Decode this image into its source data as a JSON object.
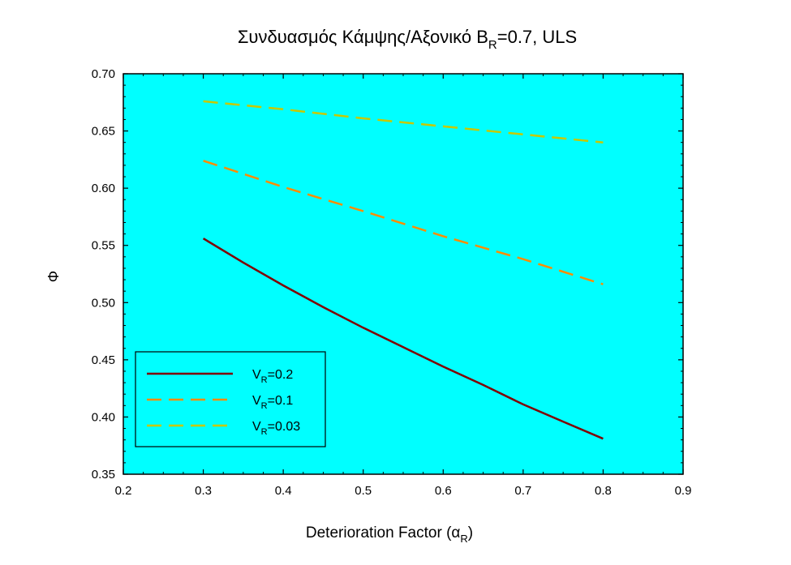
{
  "chart_data": {
    "type": "line",
    "title": {
      "main": "Συνδυασμός Κάμψης/Αξονικό  B",
      "sub": "R",
      "rest": "=0.7, ULS"
    },
    "xlabel": {
      "main": "Deterioration Factor (α",
      "sub": "R",
      "rest": ")"
    },
    "ylabel": "Φ",
    "xlim": [
      0.2,
      0.9
    ],
    "ylim": [
      0.35,
      0.7
    ],
    "xticks": [
      "0.2",
      "0.3",
      "0.4",
      "0.5",
      "0.6",
      "0.7",
      "0.8",
      "0.9"
    ],
    "yticks": [
      "0.35",
      "0.40",
      "0.45",
      "0.50",
      "0.55",
      "0.60",
      "0.65",
      "0.70"
    ],
    "background": "#00ffff",
    "grid": false,
    "legend_position": "bottom-left",
    "series": [
      {
        "name_main": "V",
        "name_sub": "R",
        "name_rest": "=0.2",
        "color": "#800000",
        "style": "solid",
        "x": [
          0.3,
          0.35,
          0.4,
          0.45,
          0.5,
          0.55,
          0.6,
          0.65,
          0.7,
          0.75,
          0.8
        ],
        "y": [
          0.556,
          0.535,
          0.515,
          0.496,
          0.478,
          0.461,
          0.444,
          0.428,
          0.411,
          0.396,
          0.381
        ]
      },
      {
        "name_main": "V",
        "name_sub": "R",
        "name_rest": "=0.1",
        "color": "#ff8c00",
        "style": "dashed",
        "x": [
          0.3,
          0.4,
          0.5,
          0.6,
          0.7,
          0.8
        ],
        "y": [
          0.624,
          0.601,
          0.58,
          0.558,
          0.538,
          0.516
        ]
      },
      {
        "name_main": "V",
        "name_sub": "R",
        "name_rest": "=0.03",
        "color": "#c8c800",
        "style": "dashed",
        "x": [
          0.3,
          0.4,
          0.5,
          0.6,
          0.7,
          0.8
        ],
        "y": [
          0.676,
          0.669,
          0.661,
          0.654,
          0.647,
          0.64
        ]
      }
    ]
  }
}
